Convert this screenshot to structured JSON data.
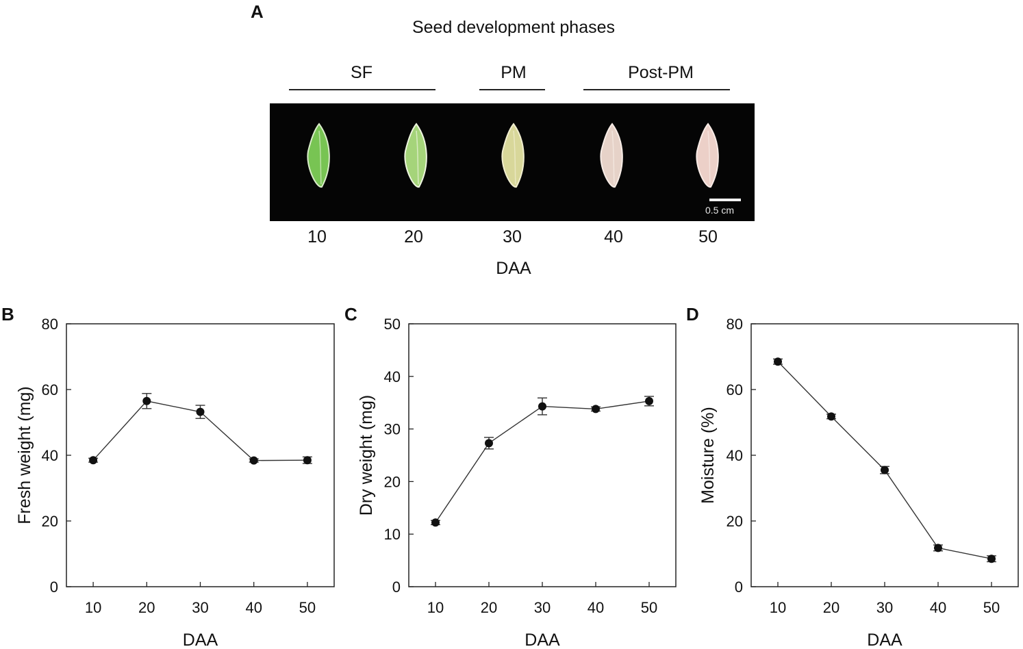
{
  "figure": {
    "panel_a": {
      "letter": "A",
      "title": "Seed development phases",
      "phases": [
        "SF",
        "PM",
        "Post-PM"
      ],
      "scale_label": "0.5 cm",
      "seeds": [
        {
          "daa": "10",
          "color": "#78c453",
          "edge": "#d9ecc9"
        },
        {
          "daa": "20",
          "color": "#a5d47a",
          "edge": "#eef5e0"
        },
        {
          "daa": "30",
          "color": "#d8d79a",
          "edge": "#f1eed0"
        },
        {
          "daa": "40",
          "color": "#e6d2c8",
          "edge": "#f7ece6"
        },
        {
          "daa": "50",
          "color": "#ecd0c8",
          "edge": "#f8ebe6"
        }
      ],
      "xlabel": "DAA"
    }
  },
  "chart_data": [
    {
      "panel": "B",
      "type": "line",
      "x": [
        10,
        20,
        30,
        40,
        50
      ],
      "values": [
        38.5,
        56.5,
        53.2,
        38.4,
        38.5
      ],
      "errors": [
        0.6,
        2.3,
        2.0,
        0.5,
        1.0
      ],
      "xlabel": "DAA",
      "ylabel": "Fresh weight (mg)",
      "ylim": [
        0,
        80
      ],
      "yticks": [
        0,
        20,
        40,
        60,
        80
      ],
      "xticks": [
        10,
        20,
        30,
        40,
        50
      ]
    },
    {
      "panel": "C",
      "type": "line",
      "x": [
        10,
        20,
        30,
        40,
        50
      ],
      "values": [
        12.2,
        27.3,
        34.3,
        33.8,
        35.3
      ],
      "errors": [
        0.4,
        1.1,
        1.6,
        0.4,
        0.9
      ],
      "xlabel": "DAA",
      "ylabel": "Dry weight (mg)",
      "ylim": [
        0,
        50
      ],
      "yticks": [
        0,
        10,
        20,
        30,
        40,
        50
      ],
      "xticks": [
        10,
        20,
        30,
        40,
        50
      ]
    },
    {
      "panel": "D",
      "type": "line",
      "x": [
        10,
        20,
        30,
        40,
        50
      ],
      "values": [
        68.5,
        51.8,
        35.5,
        11.8,
        8.5
      ],
      "errors": [
        0.8,
        0.7,
        1.1,
        0.9,
        0.9
      ],
      "xlabel": "DAA",
      "ylabel": "Moisture (%)",
      "ylim": [
        0,
        80
      ],
      "yticks": [
        0,
        20,
        40,
        60,
        80
      ],
      "xticks": [
        10,
        20,
        30,
        40,
        50
      ]
    }
  ]
}
